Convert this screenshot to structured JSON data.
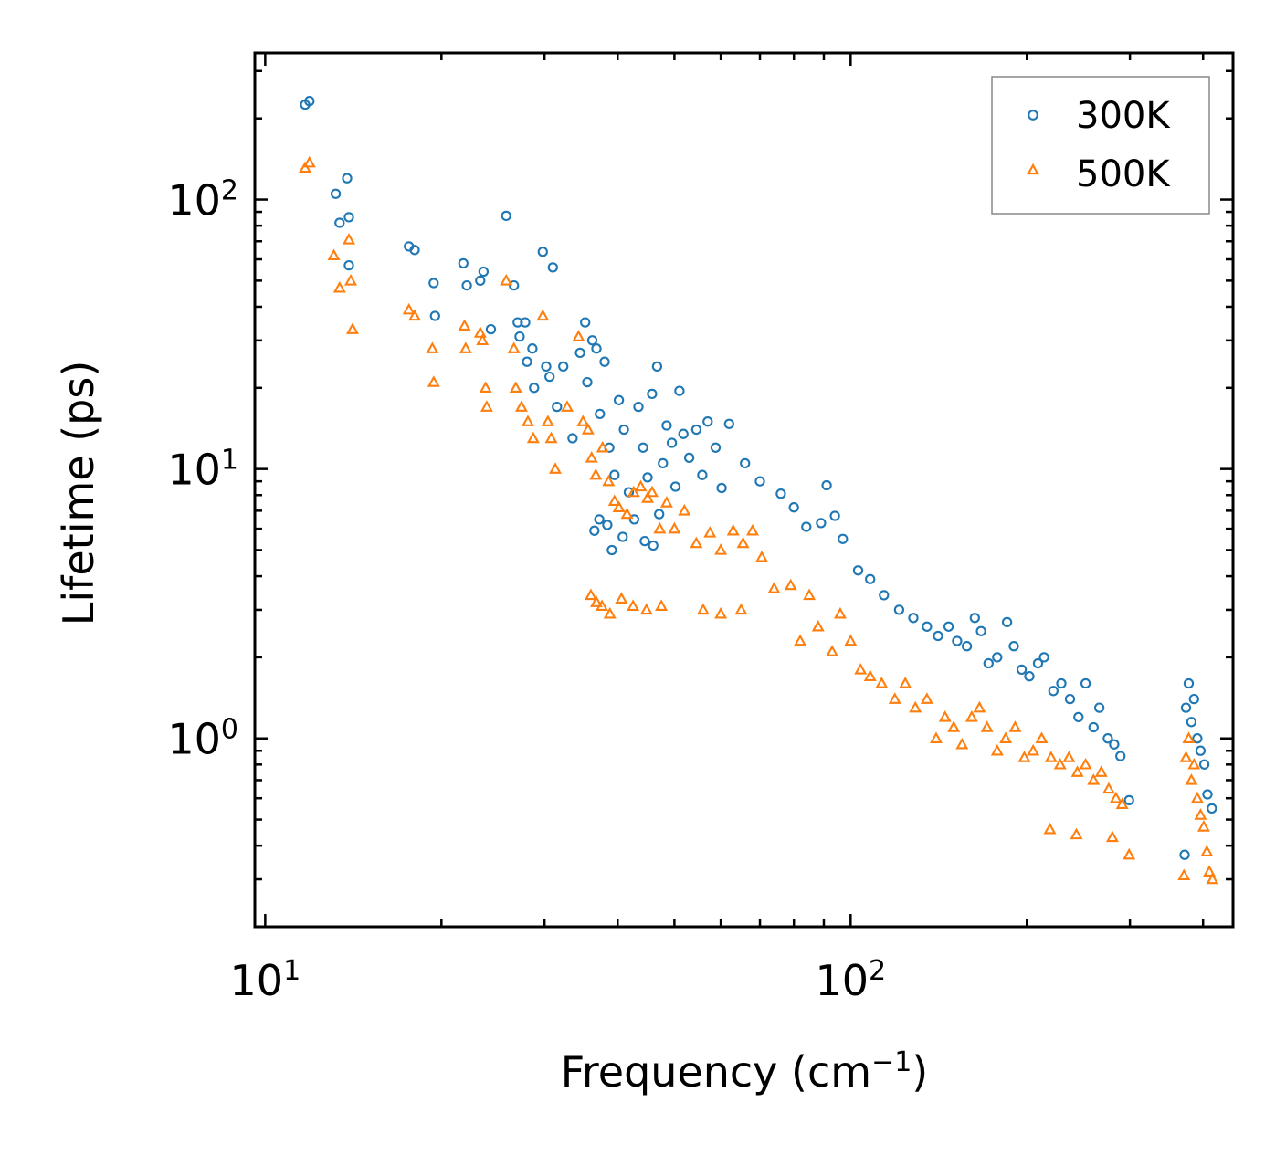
{
  "chart_data": {
    "type": "scatter",
    "x_scale": "log",
    "y_scale": "log",
    "xlabel": "Frequency (cm",
    "xlabel_sup": "−1",
    "xlabel_close": ")",
    "ylabel": "Lifetime (ps)",
    "xlim": [
      9.6,
      450
    ],
    "ylim": [
      0.2,
      350
    ],
    "x_ticks": [
      {
        "value": 10,
        "base": "10",
        "exp": "1"
      },
      {
        "value": 100,
        "base": "10",
        "exp": "2"
      }
    ],
    "y_ticks": [
      {
        "value": 1,
        "base": "10",
        "exp": "0"
      },
      {
        "value": 10,
        "base": "10",
        "exp": "1"
      },
      {
        "value": 100,
        "base": "10",
        "exp": "2"
      }
    ],
    "legend_position": "top-right",
    "series": [
      {
        "name": "300K",
        "marker": "circle",
        "color": "#1f77b4",
        "points": [
          [
            11.7,
            225
          ],
          [
            11.9,
            232
          ],
          [
            13.2,
            105
          ],
          [
            13.4,
            82
          ],
          [
            13.8,
            120
          ],
          [
            13.9,
            86
          ],
          [
            13.9,
            57
          ],
          [
            17.6,
            67
          ],
          [
            18.0,
            65
          ],
          [
            19.4,
            49
          ],
          [
            19.5,
            37
          ],
          [
            21.8,
            58
          ],
          [
            22.1,
            48
          ],
          [
            23.3,
            50
          ],
          [
            23.6,
            54
          ],
          [
            24.3,
            33
          ],
          [
            25.8,
            87
          ],
          [
            26.6,
            48
          ],
          [
            27.0,
            35
          ],
          [
            27.2,
            31
          ],
          [
            27.8,
            35
          ],
          [
            28.0,
            25
          ],
          [
            28.6,
            28
          ],
          [
            28.8,
            20
          ],
          [
            29.8,
            64
          ],
          [
            30.2,
            24
          ],
          [
            30.6,
            22
          ],
          [
            31.0,
            56
          ],
          [
            31.5,
            17
          ],
          [
            32.3,
            24
          ],
          [
            33.5,
            13
          ],
          [
            34.5,
            27
          ],
          [
            35.2,
            35
          ],
          [
            35.5,
            21
          ],
          [
            36.2,
            30
          ],
          [
            36.8,
            28
          ],
          [
            37.3,
            16
          ],
          [
            38.0,
            25
          ],
          [
            38.7,
            12
          ],
          [
            39.5,
            9.5
          ],
          [
            40.2,
            18
          ],
          [
            41.0,
            14
          ],
          [
            41.8,
            8.2
          ],
          [
            42.7,
            6.5
          ],
          [
            43.4,
            17
          ],
          [
            44.2,
            12
          ],
          [
            45.0,
            9.3
          ],
          [
            45.8,
            19
          ],
          [
            46.7,
            24
          ],
          [
            47.8,
            10.5
          ],
          [
            48.5,
            14.5
          ],
          [
            49.5,
            12.5
          ],
          [
            50.2,
            8.6
          ],
          [
            51.0,
            19.5
          ],
          [
            51.8,
            13.5
          ],
          [
            53.0,
            11
          ],
          [
            54.5,
            14
          ],
          [
            55.8,
            9.5
          ],
          [
            57.0,
            15
          ],
          [
            58.8,
            12
          ],
          [
            60.2,
            8.5
          ],
          [
            62.0,
            14.7
          ],
          [
            36.5,
            5.9
          ],
          [
            37.2,
            6.5
          ],
          [
            38.4,
            6.2
          ],
          [
            39.1,
            5.0
          ],
          [
            40.8,
            5.6
          ],
          [
            44.5,
            5.4
          ],
          [
            46.0,
            5.2
          ],
          [
            47.1,
            6.8
          ],
          [
            66,
            10.5
          ],
          [
            70,
            9.0
          ],
          [
            76,
            8.1
          ],
          [
            80,
            7.2
          ],
          [
            84,
            6.1
          ],
          [
            89,
            6.3
          ],
          [
            91,
            8.7
          ],
          [
            94,
            6.7
          ],
          [
            97,
            5.5
          ],
          [
            103,
            4.2
          ],
          [
            108,
            3.9
          ],
          [
            114,
            3.4
          ],
          [
            121,
            3.0
          ],
          [
            128,
            2.8
          ],
          [
            135,
            2.6
          ],
          [
            141,
            2.4
          ],
          [
            147,
            2.6
          ],
          [
            152,
            2.3
          ],
          [
            158,
            2.2
          ],
          [
            163,
            2.8
          ],
          [
            167,
            2.5
          ],
          [
            172,
            1.9
          ],
          [
            178,
            2.0
          ],
          [
            185,
            2.7
          ],
          [
            190,
            2.2
          ],
          [
            196,
            1.8
          ],
          [
            202,
            1.7
          ],
          [
            209,
            1.9
          ],
          [
            214,
            2.0
          ],
          [
            222,
            1.5
          ],
          [
            229,
            1.6
          ],
          [
            237,
            1.4
          ],
          [
            245,
            1.2
          ],
          [
            252,
            1.6
          ],
          [
            260,
            1.1
          ],
          [
            266,
            1.3
          ],
          [
            275,
            1.0
          ],
          [
            282,
            0.95
          ],
          [
            289,
            0.86
          ],
          [
            299,
            0.59
          ],
          [
            374,
            1.3
          ],
          [
            378,
            1.6
          ],
          [
            382,
            1.15
          ],
          [
            386,
            1.4
          ],
          [
            391,
            1.0
          ],
          [
            396,
            0.9
          ],
          [
            402,
            0.8
          ],
          [
            407,
            0.62
          ],
          [
            414,
            0.55
          ],
          [
            372,
            0.37
          ]
        ]
      },
      {
        "name": "500K",
        "marker": "triangle",
        "color": "#ff7f0e",
        "points": [
          [
            11.7,
            131
          ],
          [
            11.9,
            137
          ],
          [
            13.1,
            62
          ],
          [
            13.4,
            47
          ],
          [
            13.9,
            71
          ],
          [
            14.0,
            50
          ],
          [
            14.1,
            33
          ],
          [
            17.6,
            39
          ],
          [
            18.0,
            37
          ],
          [
            19.3,
            28
          ],
          [
            19.4,
            21
          ],
          [
            21.9,
            34
          ],
          [
            22.0,
            28
          ],
          [
            23.3,
            32
          ],
          [
            23.5,
            30
          ],
          [
            23.8,
            20
          ],
          [
            23.9,
            17
          ],
          [
            25.8,
            50
          ],
          [
            26.6,
            28
          ],
          [
            26.8,
            20
          ],
          [
            27.4,
            17
          ],
          [
            28.1,
            15
          ],
          [
            28.7,
            13
          ],
          [
            29.8,
            37
          ],
          [
            30.4,
            15
          ],
          [
            30.8,
            13
          ],
          [
            31.3,
            10
          ],
          [
            32.8,
            17
          ],
          [
            34.3,
            31
          ],
          [
            34.9,
            15
          ],
          [
            35.6,
            14
          ],
          [
            36.1,
            11
          ],
          [
            36.7,
            9.5
          ],
          [
            37.7,
            12
          ],
          [
            38.6,
            9.0
          ],
          [
            39.5,
            7.6
          ],
          [
            40.2,
            7.2
          ],
          [
            41.5,
            6.8
          ],
          [
            42.6,
            8.2
          ],
          [
            43.8,
            8.6
          ],
          [
            45.0,
            7.8
          ],
          [
            45.8,
            8.2
          ],
          [
            47.2,
            6.0
          ],
          [
            48.5,
            7.5
          ],
          [
            50.0,
            6.0
          ],
          [
            52.0,
            7.0
          ],
          [
            54.5,
            5.3
          ],
          [
            57.5,
            5.8
          ],
          [
            60.0,
            5.0
          ],
          [
            63.0,
            5.9
          ],
          [
            65.5,
            5.3
          ],
          [
            68.0,
            5.9
          ],
          [
            70.5,
            4.7
          ],
          [
            36.0,
            3.4
          ],
          [
            36.8,
            3.2
          ],
          [
            37.6,
            3.1
          ],
          [
            38.8,
            2.9
          ],
          [
            40.6,
            3.3
          ],
          [
            42.5,
            3.1
          ],
          [
            44.8,
            3.0
          ],
          [
            47.5,
            3.1
          ],
          [
            56,
            3.0
          ],
          [
            60,
            2.9
          ],
          [
            65,
            3.0
          ],
          [
            74,
            3.6
          ],
          [
            79,
            3.7
          ],
          [
            82,
            2.3
          ],
          [
            85,
            3.4
          ],
          [
            88,
            2.6
          ],
          [
            93,
            2.1
          ],
          [
            96,
            2.9
          ],
          [
            100,
            2.3
          ],
          [
            104,
            1.8
          ],
          [
            108,
            1.7
          ],
          [
            113,
            1.6
          ],
          [
            119,
            1.4
          ],
          [
            124,
            1.6
          ],
          [
            129,
            1.3
          ],
          [
            135,
            1.4
          ],
          [
            140,
            1.0
          ],
          [
            145,
            1.2
          ],
          [
            150,
            1.1
          ],
          [
            155,
            0.95
          ],
          [
            161,
            1.2
          ],
          [
            166,
            1.3
          ],
          [
            171,
            1.1
          ],
          [
            178,
            0.9
          ],
          [
            184,
            1.0
          ],
          [
            191,
            1.1
          ],
          [
            198,
            0.85
          ],
          [
            205,
            0.9
          ],
          [
            212,
            1.0
          ],
          [
            220,
            0.85
          ],
          [
            228,
            0.8
          ],
          [
            236,
            0.85
          ],
          [
            244,
            0.75
          ],
          [
            252,
            0.8
          ],
          [
            260,
            0.7
          ],
          [
            268,
            0.75
          ],
          [
            276,
            0.65
          ],
          [
            284,
            0.6
          ],
          [
            291,
            0.57
          ],
          [
            299,
            0.37
          ],
          [
            219,
            0.46
          ],
          [
            243,
            0.44
          ],
          [
            280,
            0.43
          ],
          [
            374,
            0.85
          ],
          [
            378,
            1.0
          ],
          [
            382,
            0.7
          ],
          [
            386,
            0.8
          ],
          [
            391,
            0.6
          ],
          [
            396,
            0.52
          ],
          [
            401,
            0.47
          ],
          [
            406,
            0.38
          ],
          [
            410,
            0.32
          ],
          [
            415,
            0.3
          ],
          [
            371,
            0.31
          ]
        ]
      }
    ]
  }
}
